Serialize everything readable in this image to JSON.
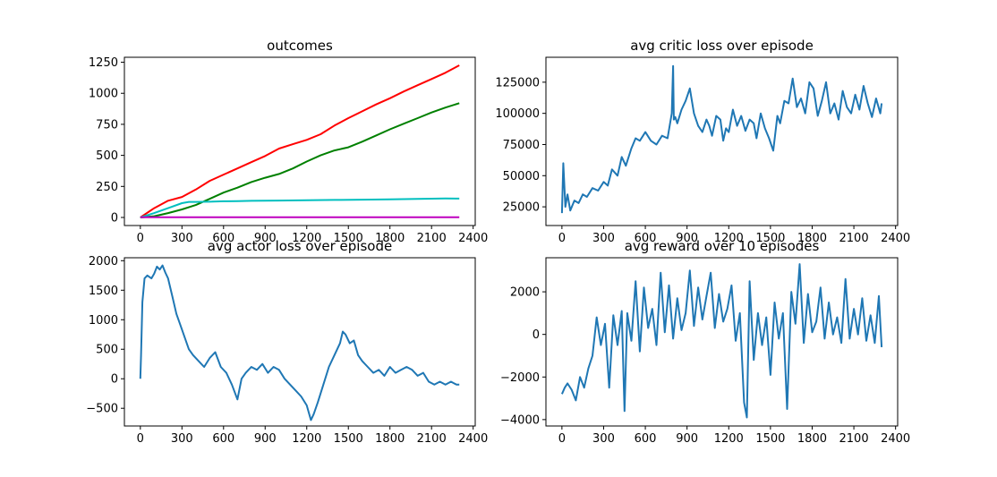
{
  "figure": {
    "background": "#ffffff",
    "frame_color": "#000000"
  },
  "chart_data": [
    {
      "type": "line",
      "title": "outcomes",
      "xlabel": "",
      "ylabel": "",
      "xlim": [
        -115,
        2415
      ],
      "ylim": [
        -65,
        1290
      ],
      "xticks": [
        0,
        300,
        600,
        900,
        1200,
        1500,
        1800,
        2100,
        2400
      ],
      "yticks": [
        0,
        250,
        500,
        750,
        1000,
        1250
      ],
      "grid": false,
      "legend": "none",
      "series": [
        {
          "color": "#ff0000",
          "x": [
            0,
            100,
            200,
            300,
            400,
            500,
            600,
            700,
            800,
            900,
            1000,
            1100,
            1200,
            1300,
            1400,
            1500,
            1600,
            1700,
            1800,
            1900,
            2000,
            2100,
            2200,
            2300
          ],
          "values": [
            0,
            75,
            135,
            165,
            225,
            295,
            345,
            395,
            445,
            495,
            555,
            590,
            625,
            670,
            740,
            800,
            855,
            910,
            960,
            1015,
            1065,
            1115,
            1165,
            1225
          ]
        },
        {
          "color": "#008000",
          "x": [
            0,
            100,
            200,
            300,
            400,
            500,
            600,
            700,
            800,
            900,
            1000,
            1100,
            1200,
            1300,
            1400,
            1500,
            1600,
            1700,
            1800,
            1900,
            2000,
            2100,
            2200,
            2300
          ],
          "values": [
            0,
            10,
            35,
            65,
            100,
            150,
            200,
            240,
            285,
            320,
            350,
            395,
            450,
            500,
            540,
            565,
            610,
            660,
            710,
            755,
            800,
            845,
            885,
            920
          ]
        },
        {
          "color": "#00bfbf",
          "x": [
            0,
            100,
            200,
            300,
            350,
            400,
            500,
            600,
            700,
            800,
            900,
            1000,
            1200,
            1400,
            1600,
            1800,
            2000,
            2200,
            2300
          ],
          "values": [
            0,
            35,
            75,
            115,
            125,
            125,
            127,
            130,
            132,
            134,
            135,
            136,
            138,
            141,
            143,
            146,
            150,
            153,
            152
          ]
        },
        {
          "color": "#bf00bf",
          "x": [
            0,
            2300
          ],
          "values": [
            2,
            2
          ]
        }
      ]
    },
    {
      "type": "line",
      "title": "avg critic loss over episode",
      "xlabel": "",
      "ylabel": "",
      "xlim": [
        -115,
        2415
      ],
      "ylim": [
        10000,
        145000
      ],
      "xticks": [
        0,
        300,
        600,
        900,
        1200,
        1500,
        1800,
        2100,
        2400
      ],
      "yticks": [
        25000,
        50000,
        75000,
        100000,
        125000
      ],
      "grid": false,
      "legend": "none",
      "series": [
        {
          "color": "#1f77b4",
          "x": [
            0,
            10,
            25,
            40,
            60,
            90,
            120,
            150,
            180,
            220,
            260,
            300,
            330,
            360,
            400,
            430,
            460,
            500,
            530,
            560,
            600,
            640,
            680,
            720,
            760,
            790,
            800,
            805,
            815,
            830,
            860,
            890,
            920,
            950,
            980,
            1010,
            1040,
            1060,
            1080,
            1110,
            1140,
            1160,
            1180,
            1200,
            1230,
            1260,
            1290,
            1320,
            1350,
            1380,
            1400,
            1430,
            1460,
            1490,
            1520,
            1550,
            1570,
            1600,
            1630,
            1660,
            1690,
            1720,
            1750,
            1780,
            1810,
            1840,
            1870,
            1900,
            1930,
            1960,
            1990,
            2020,
            2050,
            2080,
            2110,
            2140,
            2170,
            2200,
            2230,
            2260,
            2290,
            2300
          ],
          "values": [
            20000,
            60000,
            25000,
            35000,
            22000,
            30000,
            28000,
            35000,
            33000,
            40000,
            38000,
            45000,
            42000,
            55000,
            50000,
            65000,
            58000,
            72000,
            80000,
            78000,
            85000,
            78000,
            75000,
            82000,
            80000,
            100000,
            138000,
            95000,
            97000,
            92000,
            103000,
            110000,
            120000,
            100000,
            90000,
            85000,
            95000,
            90000,
            82000,
            98000,
            95000,
            78000,
            88000,
            85000,
            103000,
            90000,
            98000,
            86000,
            95000,
            92000,
            80000,
            100000,
            88000,
            80000,
            70000,
            98000,
            92000,
            110000,
            108000,
            128000,
            105000,
            112000,
            100000,
            125000,
            120000,
            98000,
            110000,
            125000,
            100000,
            108000,
            95000,
            118000,
            105000,
            100000,
            115000,
            103000,
            122000,
            108000,
            97000,
            112000,
            100000,
            108000
          ]
        }
      ]
    },
    {
      "type": "line",
      "title": "avg actor loss over episode",
      "xlabel": "",
      "ylabel": "",
      "xlim": [
        -115,
        2415
      ],
      "ylim": [
        -800,
        2050
      ],
      "xticks": [
        0,
        300,
        600,
        900,
        1200,
        1500,
        1800,
        2100,
        2400
      ],
      "yticks": [
        -500,
        0,
        500,
        1000,
        1500,
        2000
      ],
      "grid": false,
      "legend": "none",
      "series": [
        {
          "color": "#1f77b4",
          "x": [
            0,
            5,
            15,
            30,
            50,
            80,
            100,
            120,
            140,
            160,
            180,
            200,
            230,
            260,
            290,
            320,
            350,
            380,
            420,
            460,
            500,
            540,
            580,
            620,
            660,
            700,
            730,
            760,
            800,
            840,
            880,
            920,
            960,
            1000,
            1040,
            1080,
            1120,
            1160,
            1200,
            1230,
            1250,
            1280,
            1320,
            1360,
            1400,
            1440,
            1460,
            1480,
            1510,
            1540,
            1570,
            1600,
            1640,
            1680,
            1720,
            1760,
            1800,
            1840,
            1880,
            1920,
            1960,
            2000,
            2040,
            2080,
            2120,
            2160,
            2200,
            2240,
            2280,
            2300
          ],
          "values": [
            0,
            400,
            1300,
            1700,
            1750,
            1700,
            1780,
            1900,
            1850,
            1920,
            1800,
            1700,
            1400,
            1100,
            900,
            700,
            500,
            400,
            300,
            200,
            350,
            450,
            200,
            100,
            -100,
            -350,
            0,
            100,
            200,
            150,
            250,
            100,
            200,
            150,
            0,
            -100,
            -200,
            -300,
            -450,
            -700,
            -600,
            -400,
            -100,
            200,
            400,
            600,
            800,
            750,
            600,
            650,
            400,
            300,
            200,
            100,
            150,
            50,
            200,
            100,
            150,
            200,
            150,
            50,
            100,
            -50,
            -100,
            -50,
            -100,
            -50,
            -100,
            -100
          ]
        }
      ]
    },
    {
      "type": "line",
      "title": "avg reward over 10 episodes",
      "xlabel": "",
      "ylabel": "",
      "xlim": [
        -115,
        2415
      ],
      "ylim": [
        -4300,
        3600
      ],
      "xticks": [
        0,
        300,
        600,
        900,
        1200,
        1500,
        1800,
        2100,
        2400
      ],
      "yticks": [
        -4000,
        -2000,
        0,
        2000
      ],
      "grid": false,
      "legend": "none",
      "series": [
        {
          "color": "#1f77b4",
          "x": [
            0,
            20,
            40,
            70,
            100,
            130,
            160,
            190,
            220,
            250,
            280,
            310,
            340,
            370,
            400,
            430,
            450,
            470,
            500,
            530,
            560,
            590,
            620,
            650,
            680,
            710,
            740,
            770,
            800,
            830,
            860,
            890,
            920,
            950,
            980,
            1010,
            1040,
            1070,
            1100,
            1130,
            1160,
            1190,
            1220,
            1250,
            1280,
            1310,
            1330,
            1350,
            1380,
            1410,
            1440,
            1470,
            1500,
            1530,
            1560,
            1590,
            1620,
            1650,
            1680,
            1710,
            1740,
            1770,
            1800,
            1830,
            1860,
            1890,
            1920,
            1950,
            1980,
            2010,
            2040,
            2070,
            2100,
            2130,
            2160,
            2190,
            2220,
            2250,
            2280,
            2300
          ],
          "values": [
            -2800,
            -2500,
            -2300,
            -2600,
            -3100,
            -2000,
            -2500,
            -1600,
            -1000,
            800,
            -500,
            500,
            -2500,
            900,
            -500,
            1100,
            -3600,
            1000,
            -300,
            2500,
            -800,
            2200,
            300,
            1200,
            -500,
            2900,
            100,
            2300,
            -200,
            1700,
            200,
            1000,
            3000,
            400,
            2200,
            700,
            1800,
            2900,
            300,
            1900,
            600,
            1200,
            2300,
            -300,
            1000,
            -3200,
            -3900,
            2500,
            -1200,
            1000,
            -500,
            800,
            -1900,
            1500,
            -200,
            1000,
            -3500,
            2000,
            500,
            3300,
            -400,
            1900,
            100,
            600,
            2200,
            -200,
            1500,
            0,
            800,
            -400,
            2600,
            -200,
            1200,
            0,
            1700,
            -300,
            900,
            -400,
            1800,
            -600
          ]
        }
      ]
    }
  ]
}
